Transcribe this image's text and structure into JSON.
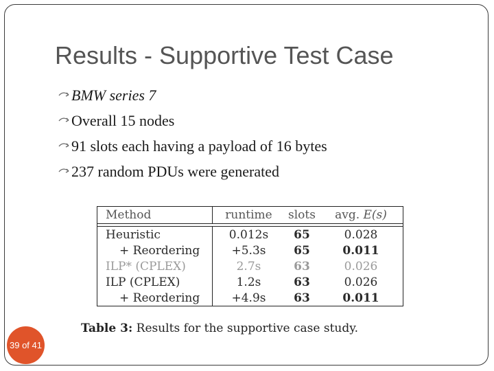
{
  "slide": {
    "title": "Results - Supportive Test Case",
    "bullets": [
      {
        "text": "BMW series 7",
        "italic": true
      },
      {
        "text": "Overall 15 nodes",
        "italic": false
      },
      {
        "text": "91 slots each having a payload of 16 bytes",
        "italic": false
      },
      {
        "text": "237 random PDUs were generated",
        "italic": false
      }
    ],
    "bullet_icon": "arrow-bullet-icon",
    "page_indicator": "39 of 41",
    "badge_color": "#e0542a"
  },
  "table": {
    "headers": {
      "method": "Method",
      "runtime": "runtime",
      "slots": "slots",
      "avg_prefix": "avg. ",
      "avg_expr": "E(s)"
    },
    "rows": [
      {
        "method": "Heuristic",
        "runtime": "0.012s",
        "slots": "65",
        "avg": "0.028"
      },
      {
        "method": "+ Reordering",
        "runtime": "+5.3s",
        "slots": "65",
        "avg": "0.011"
      },
      {
        "method": "ILP* (CPLEX)",
        "runtime": "2.7s",
        "slots": "63",
        "avg": "0.026"
      },
      {
        "method": "ILP (CPLEX)",
        "runtime": "1.2s",
        "slots": "63",
        "avg": "0.026"
      },
      {
        "method": "+ Reordering",
        "runtime": "+4.9s",
        "slots": "63",
        "avg": "0.011"
      }
    ],
    "caption_label": "Table 3:",
    "caption_text": "Results for the supportive case study."
  }
}
